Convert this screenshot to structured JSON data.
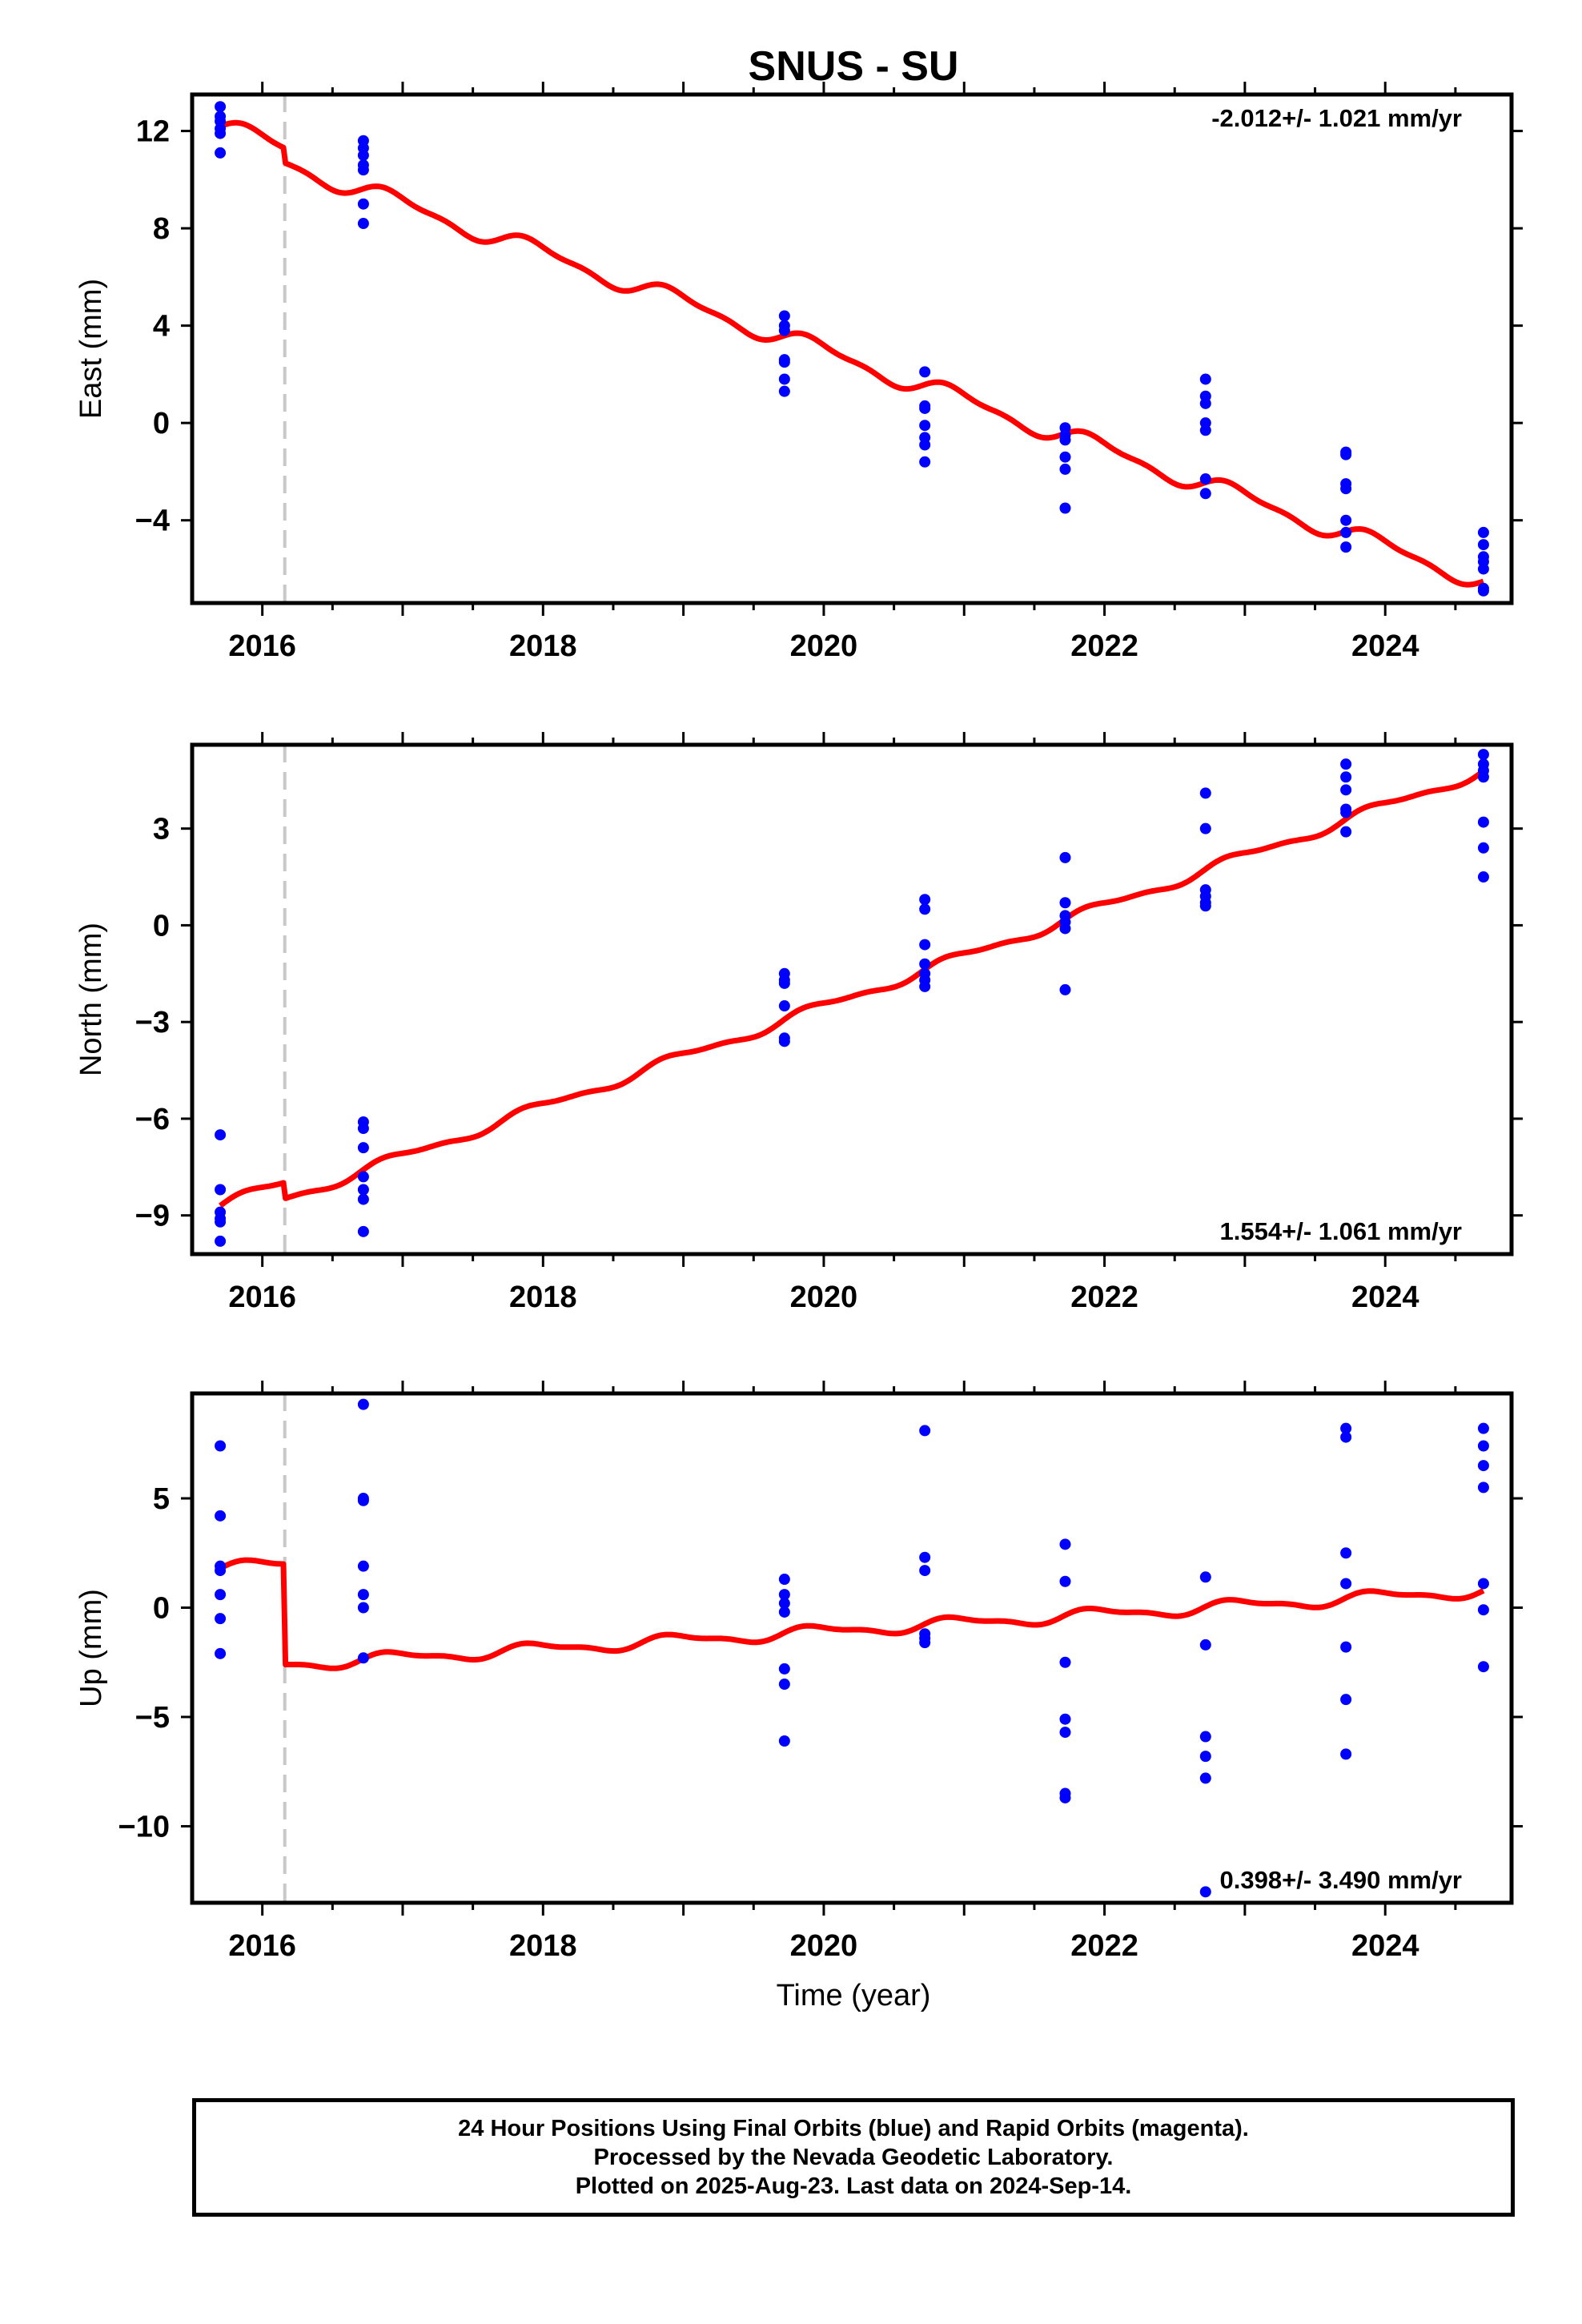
{
  "chart_data": {
    "type": "scatter",
    "title": "SNUS - SU",
    "xlabel": "Time (year)",
    "x_range": [
      2015.5,
      2024.9
    ],
    "x_ticks": [
      "2016",
      "2018",
      "2020",
      "2022",
      "2024"
    ],
    "x_tick_values": [
      2016,
      2018,
      2020,
      2022,
      2024
    ],
    "offset_marker_year": 2016.16,
    "colors": {
      "points": "#0000ff",
      "model": "#ff0000",
      "offset_line": "#c8c8c8",
      "frame": "#000000"
    },
    "panels": [
      {
        "ylabel": "East (mm)",
        "ylim": [
          -7.4,
          13.5
        ],
        "yticks": [
          12,
          8,
          4,
          0,
          -4
        ],
        "ytick_labels": [
          "12",
          "8",
          "4",
          "0",
          "−4"
        ],
        "rate_label": "-2.012+/- 1.021 mm/yr",
        "rate_position": "top-right",
        "model": {
          "start_value": 12.2,
          "start_year": 2015.7,
          "rate": -2.012,
          "annual_amp": 0.35,
          "step_year": 2016.16,
          "step": -0.6,
          "end_year": 2024.7
        },
        "points": [
          {
            "x": 2015.7,
            "y": 13.0
          },
          {
            "x": 2015.7,
            "y": 12.6
          },
          {
            "x": 2015.7,
            "y": 12.4
          },
          {
            "x": 2015.7,
            "y": 12.1
          },
          {
            "x": 2015.7,
            "y": 11.9
          },
          {
            "x": 2015.7,
            "y": 11.1
          },
          {
            "x": 2016.72,
            "y": 11.6
          },
          {
            "x": 2016.72,
            "y": 11.3
          },
          {
            "x": 2016.72,
            "y": 11.0
          },
          {
            "x": 2016.72,
            "y": 10.6
          },
          {
            "x": 2016.72,
            "y": 10.4
          },
          {
            "x": 2016.72,
            "y": 9.0
          },
          {
            "x": 2016.72,
            "y": 8.2
          },
          {
            "x": 2019.72,
            "y": 4.4
          },
          {
            "x": 2019.72,
            "y": 4.0
          },
          {
            "x": 2019.72,
            "y": 3.8
          },
          {
            "x": 2019.72,
            "y": 2.6
          },
          {
            "x": 2019.72,
            "y": 2.5
          },
          {
            "x": 2019.72,
            "y": 1.8
          },
          {
            "x": 2019.72,
            "y": 1.3
          },
          {
            "x": 2020.72,
            "y": 2.1
          },
          {
            "x": 2020.72,
            "y": 0.7
          },
          {
            "x": 2020.72,
            "y": 0.6
          },
          {
            "x": 2020.72,
            "y": -0.1
          },
          {
            "x": 2020.72,
            "y": -0.6
          },
          {
            "x": 2020.72,
            "y": -0.9
          },
          {
            "x": 2020.72,
            "y": -1.6
          },
          {
            "x": 2021.72,
            "y": -0.2
          },
          {
            "x": 2021.72,
            "y": -0.5
          },
          {
            "x": 2021.72,
            "y": -0.7
          },
          {
            "x": 2021.72,
            "y": -1.4
          },
          {
            "x": 2021.72,
            "y": -1.9
          },
          {
            "x": 2021.72,
            "y": -3.5
          },
          {
            "x": 2022.72,
            "y": 1.8
          },
          {
            "x": 2022.72,
            "y": 1.1
          },
          {
            "x": 2022.72,
            "y": 0.8
          },
          {
            "x": 2022.72,
            "y": 0.0
          },
          {
            "x": 2022.72,
            "y": -0.3
          },
          {
            "x": 2022.72,
            "y": -2.3
          },
          {
            "x": 2022.72,
            "y": -2.9
          },
          {
            "x": 2023.72,
            "y": -1.2
          },
          {
            "x": 2023.72,
            "y": -1.3
          },
          {
            "x": 2023.72,
            "y": -2.5
          },
          {
            "x": 2023.72,
            "y": -2.7
          },
          {
            "x": 2023.72,
            "y": -4.0
          },
          {
            "x": 2023.72,
            "y": -4.5
          },
          {
            "x": 2023.72,
            "y": -5.1
          },
          {
            "x": 2024.7,
            "y": -4.5
          },
          {
            "x": 2024.7,
            "y": -5.0
          },
          {
            "x": 2024.7,
            "y": -5.5
          },
          {
            "x": 2024.7,
            "y": -5.7
          },
          {
            "x": 2024.7,
            "y": -6.0
          },
          {
            "x": 2024.7,
            "y": -6.8
          },
          {
            "x": 2024.7,
            "y": -6.9
          }
        ]
      },
      {
        "ylabel": "North (mm)",
        "ylim": [
          -10.2,
          5.6
        ],
        "yticks": [
          3,
          0,
          -3,
          -6,
          -9
        ],
        "ytick_labels": [
          "3",
          "0",
          "−3",
          "−6",
          "−9"
        ],
        "rate_label": "1.554+/- 1.061 mm/yr",
        "rate_position": "bottom-right",
        "model": {
          "start_value": -8.7,
          "start_year": 2015.7,
          "rate": 1.554,
          "annual_amp": 0.15,
          "step_year": 2016.16,
          "step": -0.5,
          "end_year": 2024.7
        },
        "points": [
          {
            "x": 2015.7,
            "y": -6.5
          },
          {
            "x": 2015.7,
            "y": -8.2
          },
          {
            "x": 2015.7,
            "y": -8.9
          },
          {
            "x": 2015.7,
            "y": -9.1
          },
          {
            "x": 2015.7,
            "y": -9.2
          },
          {
            "x": 2015.7,
            "y": -9.8
          },
          {
            "x": 2016.72,
            "y": -6.1
          },
          {
            "x": 2016.72,
            "y": -6.3
          },
          {
            "x": 2016.72,
            "y": -6.9
          },
          {
            "x": 2016.72,
            "y": -7.8
          },
          {
            "x": 2016.72,
            "y": -8.2
          },
          {
            "x": 2016.72,
            "y": -8.5
          },
          {
            "x": 2016.72,
            "y": -9.5
          },
          {
            "x": 2019.72,
            "y": -1.5
          },
          {
            "x": 2019.72,
            "y": -1.7
          },
          {
            "x": 2019.72,
            "y": -1.8
          },
          {
            "x": 2019.72,
            "y": -2.5
          },
          {
            "x": 2019.72,
            "y": -3.5
          },
          {
            "x": 2019.72,
            "y": -3.6
          },
          {
            "x": 2020.72,
            "y": 0.8
          },
          {
            "x": 2020.72,
            "y": 0.5
          },
          {
            "x": 2020.72,
            "y": -0.6
          },
          {
            "x": 2020.72,
            "y": -1.2
          },
          {
            "x": 2020.72,
            "y": -1.5
          },
          {
            "x": 2020.72,
            "y": -1.7
          },
          {
            "x": 2020.72,
            "y": -1.9
          },
          {
            "x": 2021.72,
            "y": 2.1
          },
          {
            "x": 2021.72,
            "y": 0.7
          },
          {
            "x": 2021.72,
            "y": 0.3
          },
          {
            "x": 2021.72,
            "y": 0.1
          },
          {
            "x": 2021.72,
            "y": -0.1
          },
          {
            "x": 2021.72,
            "y": -2.0
          },
          {
            "x": 2022.72,
            "y": 4.1
          },
          {
            "x": 2022.72,
            "y": 3.0
          },
          {
            "x": 2022.72,
            "y": 1.1
          },
          {
            "x": 2022.72,
            "y": 0.9
          },
          {
            "x": 2022.72,
            "y": 0.7
          },
          {
            "x": 2022.72,
            "y": 0.6
          },
          {
            "x": 2023.72,
            "y": 5.0
          },
          {
            "x": 2023.72,
            "y": 4.6
          },
          {
            "x": 2023.72,
            "y": 4.2
          },
          {
            "x": 2023.72,
            "y": 3.6
          },
          {
            "x": 2023.72,
            "y": 3.5
          },
          {
            "x": 2023.72,
            "y": 2.9
          },
          {
            "x": 2024.7,
            "y": 5.3
          },
          {
            "x": 2024.7,
            "y": 5.0
          },
          {
            "x": 2024.7,
            "y": 4.8
          },
          {
            "x": 2024.7,
            "y": 4.6
          },
          {
            "x": 2024.7,
            "y": 3.2
          },
          {
            "x": 2024.7,
            "y": 2.4
          },
          {
            "x": 2024.7,
            "y": 1.5
          }
        ]
      },
      {
        "ylabel": "Up (mm)",
        "ylim": [
          -13.5,
          9.8
        ],
        "yticks": [
          5,
          0,
          -5,
          -10
        ],
        "ytick_labels": [
          "5",
          "0",
          "−5",
          "−10"
        ],
        "rate_label": "0.398+/- 3.490 mm/yr",
        "rate_position": "bottom-right",
        "model": {
          "start_value": 1.8,
          "start_year": 2015.7,
          "rate": 0.398,
          "annual_amp": 0.25,
          "step_year": 2016.16,
          "step": -4.6,
          "end_year": 2024.7
        },
        "points": [
          {
            "x": 2015.7,
            "y": 7.4
          },
          {
            "x": 2015.7,
            "y": 4.2
          },
          {
            "x": 2015.7,
            "y": 1.9
          },
          {
            "x": 2015.7,
            "y": 1.7
          },
          {
            "x": 2015.7,
            "y": 0.6
          },
          {
            "x": 2015.7,
            "y": -0.5
          },
          {
            "x": 2015.7,
            "y": -2.1
          },
          {
            "x": 2016.72,
            "y": 9.3
          },
          {
            "x": 2016.72,
            "y": 5.0
          },
          {
            "x": 2016.72,
            "y": 4.9
          },
          {
            "x": 2016.72,
            "y": 1.9
          },
          {
            "x": 2016.72,
            "y": 0.6
          },
          {
            "x": 2016.72,
            "y": 0.0
          },
          {
            "x": 2016.72,
            "y": -2.3
          },
          {
            "x": 2019.72,
            "y": 1.3
          },
          {
            "x": 2019.72,
            "y": 0.6
          },
          {
            "x": 2019.72,
            "y": 0.2
          },
          {
            "x": 2019.72,
            "y": -0.2
          },
          {
            "x": 2019.72,
            "y": -2.8
          },
          {
            "x": 2019.72,
            "y": -3.5
          },
          {
            "x": 2019.72,
            "y": -6.1
          },
          {
            "x": 2020.72,
            "y": 8.1
          },
          {
            "x": 2020.72,
            "y": 2.3
          },
          {
            "x": 2020.72,
            "y": 1.7
          },
          {
            "x": 2020.72,
            "y": -1.2
          },
          {
            "x": 2020.72,
            "y": -1.4
          },
          {
            "x": 2020.72,
            "y": -1.6
          },
          {
            "x": 2021.72,
            "y": 2.9
          },
          {
            "x": 2021.72,
            "y": 1.2
          },
          {
            "x": 2021.72,
            "y": -2.5
          },
          {
            "x": 2021.72,
            "y": -5.1
          },
          {
            "x": 2021.72,
            "y": -5.7
          },
          {
            "x": 2021.72,
            "y": -8.5
          },
          {
            "x": 2021.72,
            "y": -8.7
          },
          {
            "x": 2022.72,
            "y": 1.4
          },
          {
            "x": 2022.72,
            "y": -1.7
          },
          {
            "x": 2022.72,
            "y": -5.9
          },
          {
            "x": 2022.72,
            "y": -6.8
          },
          {
            "x": 2022.72,
            "y": -7.8
          },
          {
            "x": 2022.72,
            "y": -13.0
          },
          {
            "x": 2023.72,
            "y": 8.2
          },
          {
            "x": 2023.72,
            "y": 7.8
          },
          {
            "x": 2023.72,
            "y": 2.5
          },
          {
            "x": 2023.72,
            "y": 1.1
          },
          {
            "x": 2023.72,
            "y": -1.8
          },
          {
            "x": 2023.72,
            "y": -4.2
          },
          {
            "x": 2023.72,
            "y": -6.7
          },
          {
            "x": 2024.7,
            "y": 8.2
          },
          {
            "x": 2024.7,
            "y": 7.4
          },
          {
            "x": 2024.7,
            "y": 6.5
          },
          {
            "x": 2024.7,
            "y": 5.5
          },
          {
            "x": 2024.7,
            "y": 1.1
          },
          {
            "x": 2024.7,
            "y": -0.1
          },
          {
            "x": 2024.7,
            "y": -2.7
          }
        ]
      }
    ]
  },
  "footer": {
    "line1": "24 Hour Positions Using Final Orbits (blue) and Rapid Orbits (magenta).",
    "line2": "Processed by the Nevada Geodetic Laboratory.",
    "line3": "Plotted on 2025-Aug-23. Last data on 2024-Sep-14."
  }
}
